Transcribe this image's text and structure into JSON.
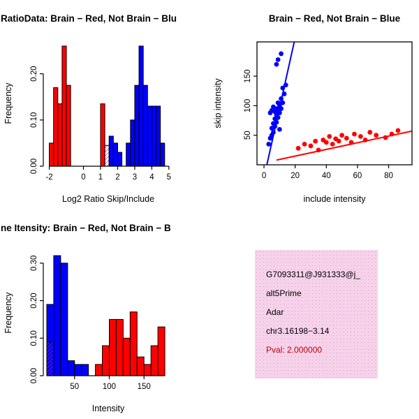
{
  "colors": {
    "red": "#FF0000",
    "blue": "#0000FF",
    "hatch": "#993399",
    "axis": "#000000",
    "box_bg": "#F6D2EA",
    "box_dot": "#DFA0CC",
    "pval": "#C00000"
  },
  "chart_data": [
    {
      "id": "log-ratio-hist",
      "type": "bar",
      "title": "RatioData: Brain − Red, Not Brain − Blu",
      "xlabel": "Log2 Ratio Skip/Include",
      "ylabel": "Frequency",
      "xlim": [
        -2.35,
        5.25
      ],
      "ylim": [
        0,
        0.272
      ],
      "xtick_vals": [
        -2,
        0,
        1,
        2,
        3,
        4,
        5
      ],
      "xtick_labels": [
        "-2",
        "0",
        "1",
        "2",
        "3",
        "4",
        "5"
      ],
      "ytick_vals": [
        0,
        0.1,
        0.2
      ],
      "ytick_labels": [
        "0.00",
        "0.10",
        "0.20"
      ],
      "bin_width": 0.25,
      "bars": [
        {
          "x": -2.0,
          "h": 0.05,
          "c": "red"
        },
        {
          "x": -1.75,
          "h": 0.17,
          "c": "red"
        },
        {
          "x": -1.5,
          "h": 0.135,
          "c": "red"
        },
        {
          "x": -1.25,
          "h": 0.26,
          "c": "red"
        },
        {
          "x": -1.0,
          "h": 0.175,
          "c": "red"
        },
        {
          "x": 1.0,
          "h": 0.135,
          "c": "red"
        },
        {
          "x": 1.5,
          "h": 0.065,
          "c": "blue"
        },
        {
          "x": 1.75,
          "h": 0.05,
          "c": "blue"
        },
        {
          "x": 2.0,
          "h": 0.03,
          "c": "blue"
        },
        {
          "x": 2.5,
          "h": 0.05,
          "c": "blue"
        },
        {
          "x": 2.75,
          "h": 0.1,
          "c": "blue"
        },
        {
          "x": 3.0,
          "h": 0.175,
          "c": "blue"
        },
        {
          "x": 3.25,
          "h": 0.26,
          "c": "blue"
        },
        {
          "x": 3.5,
          "h": 0.175,
          "c": "blue"
        },
        {
          "x": 3.75,
          "h": 0.13,
          "c": "blue"
        },
        {
          "x": 4.0,
          "h": 0.13,
          "c": "blue"
        },
        {
          "x": 4.25,
          "h": 0.13,
          "c": "blue"
        },
        {
          "x": 4.5,
          "h": 0.05,
          "c": "blue"
        },
        {
          "x": 1.25,
          "h": 0.045,
          "c": "hatch"
        }
      ]
    },
    {
      "id": "intensity-scatter",
      "type": "scatter",
      "title": "Brain − Red, Not Brain − Blue",
      "xlabel": "include intensity",
      "ylabel": "skip intensity",
      "xlim": [
        -4.5,
        95
      ],
      "ylim": [
        0,
        208
      ],
      "xtick_vals": [
        0,
        20,
        40,
        60,
        80
      ],
      "xtick_labels": [
        "0",
        "20",
        "40",
        "60",
        "80"
      ],
      "ytick_vals": [
        50,
        100,
        150
      ],
      "ytick_labels": [
        "50",
        "100",
        "150"
      ],
      "series": [
        {
          "name": "not-brain",
          "color": "blue",
          "points": [
            [
              3,
              35
            ],
            [
              4,
              45
            ],
            [
              4,
              88
            ],
            [
              5,
              50
            ],
            [
              5,
              62
            ],
            [
              5,
              92
            ],
            [
              6,
              55
            ],
            [
              6,
              70
            ],
            [
              6,
              98
            ],
            [
              7,
              65
            ],
            [
              7,
              78
            ],
            [
              7,
              90
            ],
            [
              8,
              72
            ],
            [
              8,
              85
            ],
            [
              8,
              95
            ],
            [
              8,
              170
            ],
            [
              9,
              80
            ],
            [
              9,
              92
            ],
            [
              9,
              105
            ],
            [
              9,
              178
            ],
            [
              10,
              60
            ],
            [
              10,
              88
            ],
            [
              10,
              100
            ],
            [
              11,
              95
            ],
            [
              11,
              112
            ],
            [
              11,
              188
            ],
            [
              12,
              105
            ],
            [
              12,
              130
            ],
            [
              13,
              120
            ],
            [
              14,
              135
            ]
          ],
          "fit": [
            [
              1,
              -10
            ],
            [
              20,
              215
            ]
          ]
        },
        {
          "name": "brain",
          "color": "red",
          "points": [
            [
              22,
              28
            ],
            [
              26,
              35
            ],
            [
              30,
              32
            ],
            [
              33,
              40
            ],
            [
              35,
              25
            ],
            [
              38,
              42
            ],
            [
              40,
              38
            ],
            [
              42,
              48
            ],
            [
              44,
              35
            ],
            [
              46,
              44
            ],
            [
              48,
              40
            ],
            [
              50,
              50
            ],
            [
              53,
              45
            ],
            [
              56,
              38
            ],
            [
              58,
              52
            ],
            [
              62,
              48
            ],
            [
              65,
              42
            ],
            [
              68,
              55
            ],
            [
              72,
              50
            ],
            [
              78,
              46
            ],
            [
              82,
              52
            ],
            [
              86,
              58
            ]
          ],
          "fit": [
            [
              8,
              8
            ],
            [
              95,
              57
            ]
          ]
        }
      ]
    },
    {
      "id": "gene-intensity-hist",
      "type": "bar",
      "title": "ne Itensity: Brain − Red, Not Brain − B",
      "xlabel": "Intensity",
      "ylabel": "Frequency",
      "xlim": [
        5,
        192
      ],
      "ylim": [
        0,
        0.335
      ],
      "xtick_vals": [
        50,
        100,
        150
      ],
      "xtick_labels": [
        "50",
        "100",
        "150"
      ],
      "ytick_vals": [
        0,
        0.1,
        0.2,
        0.3
      ],
      "ytick_labels": [
        "0.00",
        "0.10",
        "0.20",
        "0.30"
      ],
      "bin_width": 10,
      "bars": [
        {
          "x": 10,
          "h": 0.19,
          "c": "blue"
        },
        {
          "x": 20,
          "h": 0.32,
          "c": "blue"
        },
        {
          "x": 30,
          "h": 0.3,
          "c": "blue"
        },
        {
          "x": 40,
          "h": 0.04,
          "c": "blue"
        },
        {
          "x": 50,
          "h": 0.03,
          "c": "blue"
        },
        {
          "x": 60,
          "h": 0.03,
          "c": "blue"
        },
        {
          "x": 80,
          "h": 0.03,
          "c": "red"
        },
        {
          "x": 90,
          "h": 0.08,
          "c": "red"
        },
        {
          "x": 100,
          "h": 0.15,
          "c": "red"
        },
        {
          "x": 110,
          "h": 0.15,
          "c": "red"
        },
        {
          "x": 120,
          "h": 0.1,
          "c": "red"
        },
        {
          "x": 130,
          "h": 0.17,
          "c": "red"
        },
        {
          "x": 140,
          "h": 0.05,
          "c": "red"
        },
        {
          "x": 150,
          "h": 0.03,
          "c": "red"
        },
        {
          "x": 160,
          "h": 0.08,
          "c": "red"
        },
        {
          "x": 170,
          "h": 0.13,
          "c": "red"
        },
        {
          "x": 10,
          "h": 0.09,
          "c": "hatch"
        }
      ]
    }
  ],
  "info_box": {
    "lines": [
      "G7093311@J931333@j_",
      "alt5Prime",
      "Adar",
      "chr3.16198−3.14"
    ],
    "pval": "Pval: 2.000000"
  }
}
